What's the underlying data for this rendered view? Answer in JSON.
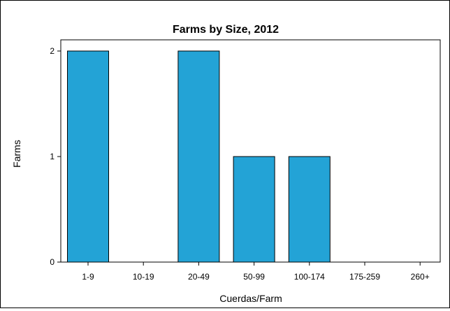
{
  "chart_data": {
    "type": "bar",
    "title": "Farms by Size, 2012",
    "xlabel": "Cuerdas/Farm",
    "ylabel": "Farms",
    "categories": [
      "1-9",
      "10-19",
      "20-49",
      "50-99",
      "100-174",
      "175-259",
      "260+"
    ],
    "values": [
      2,
      0,
      2,
      1,
      1,
      0,
      0
    ],
    "ylim": [
      0,
      2
    ],
    "yticks": [
      "0",
      "1",
      "2"
    ],
    "grid": false,
    "legend": "none",
    "bar_color": "#23A3D6"
  }
}
